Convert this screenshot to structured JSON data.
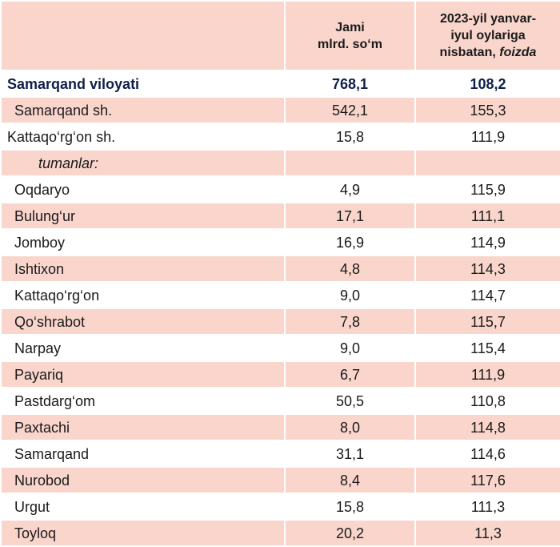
{
  "header": {
    "col2_line1": "Jami",
    "col2_line2": "mlrd. so‘m",
    "col3_line1": "2023-yil yanvar-",
    "col3_line2": "iyul oylariga",
    "col3_line3_prefix": "nisbatan, ",
    "col3_line3_italic": "foizda"
  },
  "total": {
    "name": "Samarqand viloyati",
    "jami": "768,1",
    "foiz": "108,2"
  },
  "cities": [
    {
      "name": "Samarqand sh.",
      "jami": "542,1",
      "foiz": "155,3"
    },
    {
      "name": "Kattaqo‘rg‘on sh.",
      "jami": "15,8",
      "foiz": "111,9"
    }
  ],
  "subheader": "tumanlar:",
  "districts": [
    {
      "name": "Oqdaryo",
      "jami": "4,9",
      "foiz": "115,9"
    },
    {
      "name": "Bulung‘ur",
      "jami": "17,1",
      "foiz": "111,1"
    },
    {
      "name": "Jomboy",
      "jami": "16,9",
      "foiz": "114,9"
    },
    {
      "name": "Ishtixon",
      "jami": "4,8",
      "foiz": "114,3"
    },
    {
      "name": "Kattaqo‘rg‘on",
      "jami": "9,0",
      "foiz": "114,7"
    },
    {
      "name": "Qo‘shrabot",
      "jami": "7,8",
      "foiz": "115,7"
    },
    {
      "name": "Narpay",
      "jami": "9,0",
      "foiz": "115,4"
    },
    {
      "name": "Payariq",
      "jami": "6,7",
      "foiz": "111,9"
    },
    {
      "name": "Pastdarg‘om",
      "jami": "50,5",
      "foiz": "110,8"
    },
    {
      "name": "Paxtachi",
      "jami": "8,0",
      "foiz": "114,8"
    },
    {
      "name": "Samarqand",
      "jami": "31,1",
      "foiz": "114,6"
    },
    {
      "name": "Nurobod",
      "jami": "8,4",
      "foiz": "117,6"
    },
    {
      "name": "Urgut",
      "jami": "15,8",
      "foiz": "111,3"
    },
    {
      "name": "Toyloq",
      "jami": "20,2",
      "foiz": "11,3"
    }
  ],
  "colors": {
    "row_pink": "#f9d5cc",
    "row_white": "#ffffff",
    "total_text": "#10204a"
  }
}
